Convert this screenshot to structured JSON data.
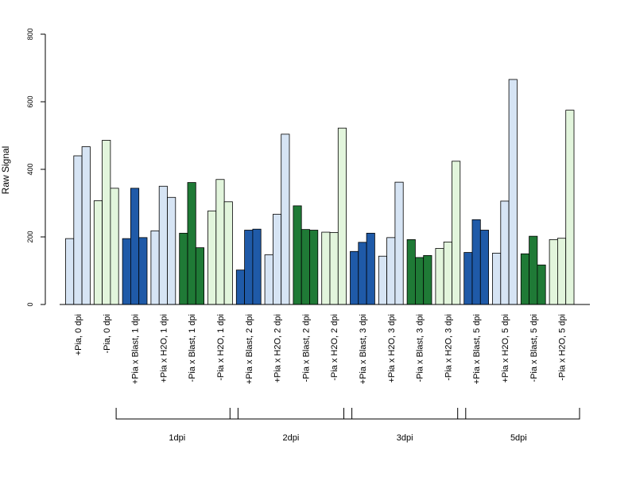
{
  "chart_data": {
    "type": "bar",
    "ylabel": "Raw Signal",
    "xlabel": "",
    "ylim": [
      0,
      800
    ],
    "yticks": [
      0,
      200,
      400,
      600,
      800
    ],
    "colors": {
      "light_blue": "#d6e4f4",
      "light_green": "#e2f5dc",
      "dark_blue": "#1f5aa8",
      "dark_green": "#1f7a36"
    },
    "categories": [
      "+Pia, 0 dpi",
      "-Pia, 0 dpi",
      "+Pia x Blast, 1 dpi",
      "+Pia x H2O, 1 dpi",
      "-Pia x Blast, 1 dpi",
      "-Pia x H2O, 1 dpi",
      "+Pia x Blast, 2 dpi",
      "+Pia x H2O, 2 dpi",
      "-Pia x Blast, 2 dpi",
      "-Pia x H2O, 2 dpi",
      "+Pia x Blast, 3 dpi",
      "+Pia x H2O, 3 dpi",
      "-Pia x Blast, 3 dpi",
      "-Pia x H2O, 3 dpi",
      "+Pia x Blast, 5 dpi",
      "+Pia x H2O, 5 dpi",
      "-Pia x Blast, 5 dpi",
      "-Pia x H2O, 5 dpi"
    ],
    "group_colors": [
      "light_blue",
      "light_green",
      "dark_blue",
      "light_blue",
      "dark_green",
      "light_green",
      "dark_blue",
      "light_blue",
      "dark_green",
      "light_green",
      "dark_blue",
      "light_blue",
      "dark_green",
      "light_green",
      "dark_blue",
      "light_blue",
      "dark_green",
      "light_green"
    ],
    "values": [
      [
        195,
        440,
        467
      ],
      [
        307,
        486,
        344
      ],
      [
        195,
        344,
        198
      ],
      [
        218,
        350,
        317
      ],
      [
        211,
        361,
        168
      ],
      [
        277,
        370,
        304
      ],
      [
        102,
        220,
        223
      ],
      [
        147,
        267,
        504
      ],
      [
        292,
        222,
        220
      ],
      [
        214,
        213,
        522
      ],
      [
        157,
        184,
        211
      ],
      [
        143,
        198,
        362
      ],
      [
        192,
        139,
        145
      ],
      [
        166,
        185,
        424
      ],
      [
        154,
        251,
        220
      ],
      [
        152,
        306,
        666
      ],
      [
        150,
        202,
        117
      ],
      [
        192,
        196,
        575
      ]
    ],
    "time_groups": [
      {
        "label": "1dpi",
        "first": 2,
        "last": 5
      },
      {
        "label": "2dpi",
        "first": 6,
        "last": 9
      },
      {
        "label": "3dpi",
        "first": 10,
        "last": 13
      },
      {
        "label": "5dpi",
        "first": 14,
        "last": 17
      }
    ]
  }
}
